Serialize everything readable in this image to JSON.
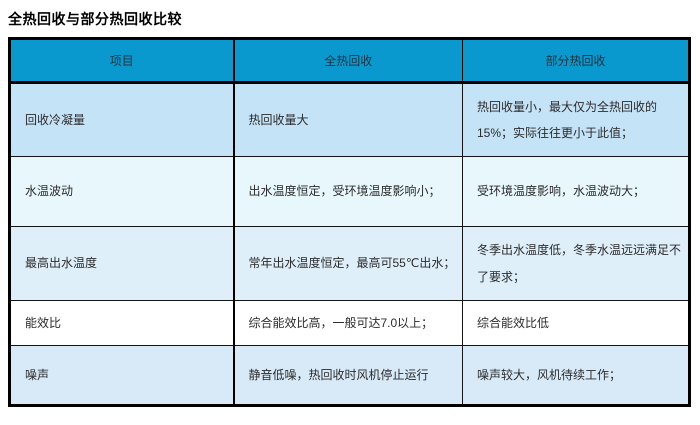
{
  "title": "全热回收与部分热回收比较",
  "colors": {
    "header_bg": "#0999CE",
    "header_text": "#1E3138",
    "body_text": "#2B2B2B",
    "border": "#000000",
    "row_colors": [
      "#C5E3F7",
      "#E7F7FC",
      "#DFEFFA",
      "#FFFFFF",
      "#D8EAF8"
    ]
  },
  "table": {
    "headers": [
      "项目",
      "全热回收",
      "部分热回收"
    ],
    "rows": [
      {
        "item": "回收冷凝量",
        "full": "热回收量大",
        "partial": "热回收量小，最大仅为全热回收的15%；实际往往更小于此值；"
      },
      {
        "item": "水温波动",
        "full": "出水温度恒定，受环境温度影响小；",
        "partial": "受环境温度影响，水温波动大；"
      },
      {
        "item": "最高出水温度",
        "full": "常年出水温度恒定，最高可55℃出水；",
        "partial": "冬季出水温度低，冬季水温远远满足不了要求；"
      },
      {
        "item": "能效比",
        "full": "综合能效比高，一般可达7.0以上；",
        "partial": "综合能效比低"
      },
      {
        "item": "噪声",
        "full": "静音低噪，热回收时风机停止运行",
        "partial": "噪声较大，风机待续工作；"
      }
    ]
  }
}
